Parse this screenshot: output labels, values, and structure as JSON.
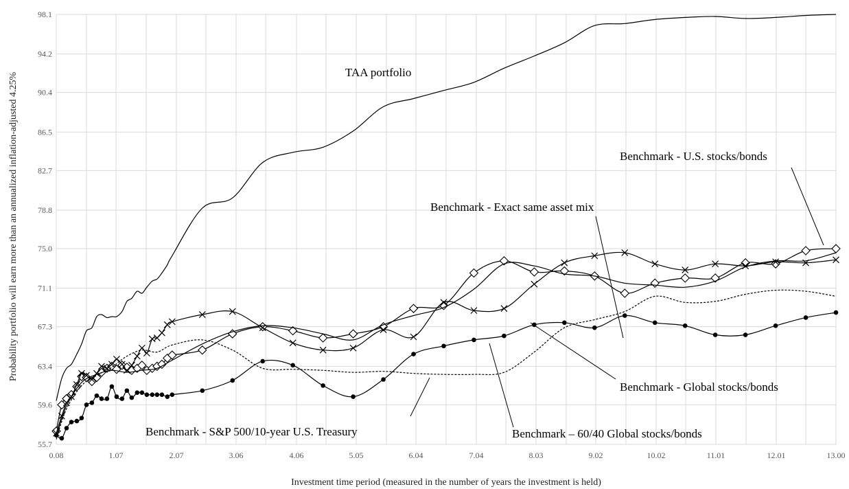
{
  "chart_data": {
    "type": "line",
    "title": "",
    "xlabel": "Investment time period (measured in the number of years the investment is held)",
    "ylabel": "Probability portfolio will earn more than an annualized inflation-adjusted 4.25%",
    "xlim": [
      0.08,
      13.0
    ],
    "ylim": [
      55.7,
      98.1
    ],
    "x_ticks": [
      0.08,
      0.58,
      1.07,
      1.57,
      2.07,
      2.56,
      3.06,
      3.55,
      4.06,
      4.55,
      5.05,
      5.55,
      6.04,
      6.54,
      7.04,
      7.53,
      8.03,
      8.53,
      9.02,
      9.52,
      10.02,
      10.51,
      11.01,
      11.51,
      12.01,
      12.5,
      13.0
    ],
    "x_tick_labels": [
      "0.08",
      "",
      "1.07",
      "",
      "2.07",
      "",
      "3.06",
      "",
      "4.06",
      "",
      "5.05",
      "",
      "6.04",
      "",
      "7.04",
      "",
      "8.03",
      "",
      "9.02",
      "",
      "10.02",
      "",
      "11.01",
      "",
      "12.01",
      "",
      "13.00"
    ],
    "y_tick_labels": [
      "55.7",
      "59.6",
      "63.4",
      "67.3",
      "71.1",
      "75.0",
      "78.8",
      "82.7",
      "86.5",
      "90.4",
      "94.2",
      "98.1"
    ],
    "grid": true,
    "series": [
      {
        "name": "TAA portfolio",
        "marker": "none",
        "dash": "solid",
        "x": [
          0.08,
          0.17,
          0.25,
          0.33,
          0.42,
          0.5,
          0.58,
          0.67,
          0.75,
          0.83,
          0.92,
          1.0,
          1.08,
          1.17,
          1.25,
          1.33,
          1.42,
          1.5,
          1.58,
          1.67,
          1.75,
          1.83,
          1.92,
          2.0,
          2.5,
          3.0,
          3.5,
          4.0,
          4.5,
          5.0,
          5.5,
          6.0,
          6.5,
          7.0,
          7.5,
          8.0,
          8.5,
          9.0,
          9.5,
          10.0,
          10.5,
          11.0,
          11.5,
          12.0,
          12.5,
          13.0
        ],
        "y": [
          60.0,
          62.2,
          63.2,
          63.6,
          64.6,
          65.6,
          66.9,
          67.2,
          68.3,
          68.5,
          68.2,
          68.3,
          68.3,
          68.8,
          69.8,
          70.1,
          70.8,
          70.6,
          71.2,
          71.8,
          72.0,
          72.6,
          73.4,
          74.3,
          79.0,
          80.0,
          83.5,
          84.5,
          85.0,
          86.6,
          89.0,
          89.8,
          90.6,
          91.4,
          92.8,
          94.0,
          95.3,
          97.0,
          97.2,
          97.6,
          97.8,
          97.9,
          97.7,
          97.8,
          98.0,
          98.1
        ]
      },
      {
        "name": "Benchmark - U.S. stocks/bonds",
        "marker": "diamond",
        "dash": "solid",
        "x": [
          0.08,
          0.17,
          0.25,
          0.33,
          0.42,
          0.5,
          0.58,
          0.67,
          0.75,
          0.83,
          0.92,
          1.0,
          1.08,
          1.17,
          1.25,
          1.33,
          1.42,
          1.5,
          1.58,
          1.67,
          1.75,
          1.83,
          1.92,
          2.0,
          2.5,
          3.0,
          3.5,
          4.0,
          4.5,
          5.0,
          5.5,
          6.0,
          6.5,
          7.0,
          7.5,
          8.0,
          8.5,
          9.0,
          9.5,
          10.0,
          10.5,
          11.0,
          11.5,
          12.0,
          12.5,
          13.0
        ],
        "y": [
          57.0,
          59.6,
          60.2,
          60.6,
          61.4,
          62.4,
          62.3,
          61.9,
          62.3,
          62.8,
          63.2,
          63.4,
          63.1,
          63.5,
          63.3,
          63.0,
          63.2,
          63.5,
          63.0,
          63.2,
          63.4,
          63.6,
          64.2,
          64.5,
          65.0,
          66.6,
          67.3,
          66.9,
          66.2,
          66.6,
          67.3,
          69.1,
          69.4,
          72.6,
          73.8,
          72.7,
          72.8,
          72.3,
          70.6,
          71.6,
          72.1,
          72.1,
          73.6,
          73.5,
          74.8,
          75.0
        ]
      },
      {
        "name": "Benchmark - Exact same asset mix",
        "marker": "x",
        "dash": "solid",
        "x": [
          0.08,
          0.17,
          0.25,
          0.33,
          0.42,
          0.5,
          0.58,
          0.67,
          0.75,
          0.83,
          0.92,
          1.0,
          1.08,
          1.17,
          1.25,
          1.33,
          1.42,
          1.5,
          1.58,
          1.67,
          1.75,
          1.83,
          1.92,
          2.0,
          2.5,
          3.0,
          3.5,
          4.0,
          4.5,
          5.0,
          5.5,
          6.0,
          6.5,
          7.0,
          7.5,
          8.0,
          8.5,
          9.0,
          9.5,
          10.0,
          10.5,
          11.0,
          11.5,
          12.0,
          12.5,
          13.0
        ],
        "y": [
          56.8,
          58.5,
          59.8,
          60.4,
          61.6,
          62.7,
          62.5,
          62.1,
          62.7,
          63.4,
          63.2,
          63.6,
          64.1,
          63.6,
          63.0,
          63.5,
          64.4,
          65.2,
          64.7,
          66.1,
          66.2,
          66.7,
          67.5,
          67.8,
          68.5,
          68.8,
          67.2,
          65.7,
          65.0,
          65.2,
          67.0,
          66.3,
          69.7,
          68.9,
          69.1,
          71.5,
          73.6,
          74.3,
          74.6,
          73.5,
          72.9,
          73.5,
          73.3,
          73.7,
          73.6,
          73.9
        ]
      },
      {
        "name": "Benchmark - Global stocks/bonds",
        "marker": "none",
        "dash": "solid",
        "x": [
          0.08,
          0.25,
          0.5,
          0.75,
          1.0,
          1.25,
          1.5,
          1.75,
          2.0,
          2.5,
          3.0,
          3.5,
          4.0,
          4.5,
          5.0,
          5.5,
          6.0,
          6.5,
          7.0,
          7.5,
          8.0,
          8.5,
          9.0,
          9.5,
          10.0,
          10.5,
          11.0,
          11.5,
          12.0,
          12.5,
          13.0
        ],
        "y": [
          56.5,
          59.5,
          61.8,
          62.6,
          63.0,
          62.8,
          63.0,
          63.2,
          64.0,
          65.6,
          66.8,
          67.4,
          67.2,
          66.6,
          66.0,
          67.5,
          68.4,
          69.2,
          71.0,
          73.5,
          73.3,
          72.5,
          72.3,
          71.6,
          71.4,
          71.2,
          71.8,
          73.2,
          73.8,
          73.8,
          74.6
        ]
      },
      {
        "name": "Benchmark - S&P 500/10-year U.S. Treasury",
        "marker": "none",
        "dash": "dashed",
        "x": [
          0.08,
          0.25,
          0.5,
          0.75,
          1.0,
          1.25,
          1.5,
          1.75,
          2.0,
          2.5,
          3.0,
          3.5,
          4.0,
          4.5,
          5.0,
          5.5,
          6.0,
          6.5,
          7.0,
          7.5,
          8.0,
          8.5,
          9.0,
          9.5,
          10.0,
          10.5,
          11.0,
          11.5,
          12.0,
          12.5,
          13.0
        ],
        "y": [
          56.2,
          59.2,
          61.5,
          62.5,
          63.3,
          64.4,
          65.0,
          64.8,
          65.5,
          66.0,
          65.0,
          63.2,
          63.1,
          63.0,
          62.8,
          62.9,
          62.7,
          62.6,
          62.6,
          62.8,
          64.8,
          67.2,
          68.0,
          68.8,
          70.3,
          69.7,
          69.8,
          70.5,
          70.9,
          70.8,
          70.3
        ]
      },
      {
        "name": "Benchmark – 60/40 Global stocks/bonds",
        "marker": "dot",
        "dash": "solid",
        "x": [
          0.08,
          0.17,
          0.25,
          0.33,
          0.42,
          0.5,
          0.58,
          0.67,
          0.75,
          0.83,
          0.92,
          1.0,
          1.08,
          1.17,
          1.25,
          1.33,
          1.42,
          1.5,
          1.58,
          1.67,
          1.75,
          1.83,
          1.92,
          2.0,
          2.5,
          3.0,
          3.5,
          4.0,
          4.5,
          5.0,
          5.5,
          6.0,
          6.5,
          7.0,
          7.5,
          8.0,
          8.5,
          9.0,
          9.5,
          10.0,
          10.5,
          11.0,
          11.5,
          12.0,
          12.5,
          13.0
        ],
        "y": [
          56.6,
          56.3,
          57.3,
          57.9,
          58.0,
          58.3,
          59.6,
          59.8,
          60.5,
          60.2,
          60.2,
          61.4,
          60.4,
          60.2,
          61.0,
          60.3,
          60.8,
          60.8,
          60.6,
          60.6,
          60.6,
          60.6,
          60.4,
          60.6,
          61.0,
          62.0,
          63.9,
          63.5,
          61.5,
          60.4,
          62.1,
          64.6,
          65.4,
          66.0,
          66.4,
          67.5,
          67.7,
          67.2,
          68.4,
          67.7,
          67.4,
          66.5,
          66.5,
          67.4,
          68.2,
          68.7
        ]
      }
    ],
    "annotations": [
      {
        "text": "TAA portfolio"
      },
      {
        "text": "Benchmark - U.S. stocks/bonds"
      },
      {
        "text": "Benchmark - Exact same asset mix"
      },
      {
        "text": "Benchmark - Global stocks/bonds"
      },
      {
        "text": "Benchmark - S&P 500/10-year U.S. Treasury"
      },
      {
        "text": "Benchmark – 60/40 Global stocks/bonds"
      }
    ]
  }
}
